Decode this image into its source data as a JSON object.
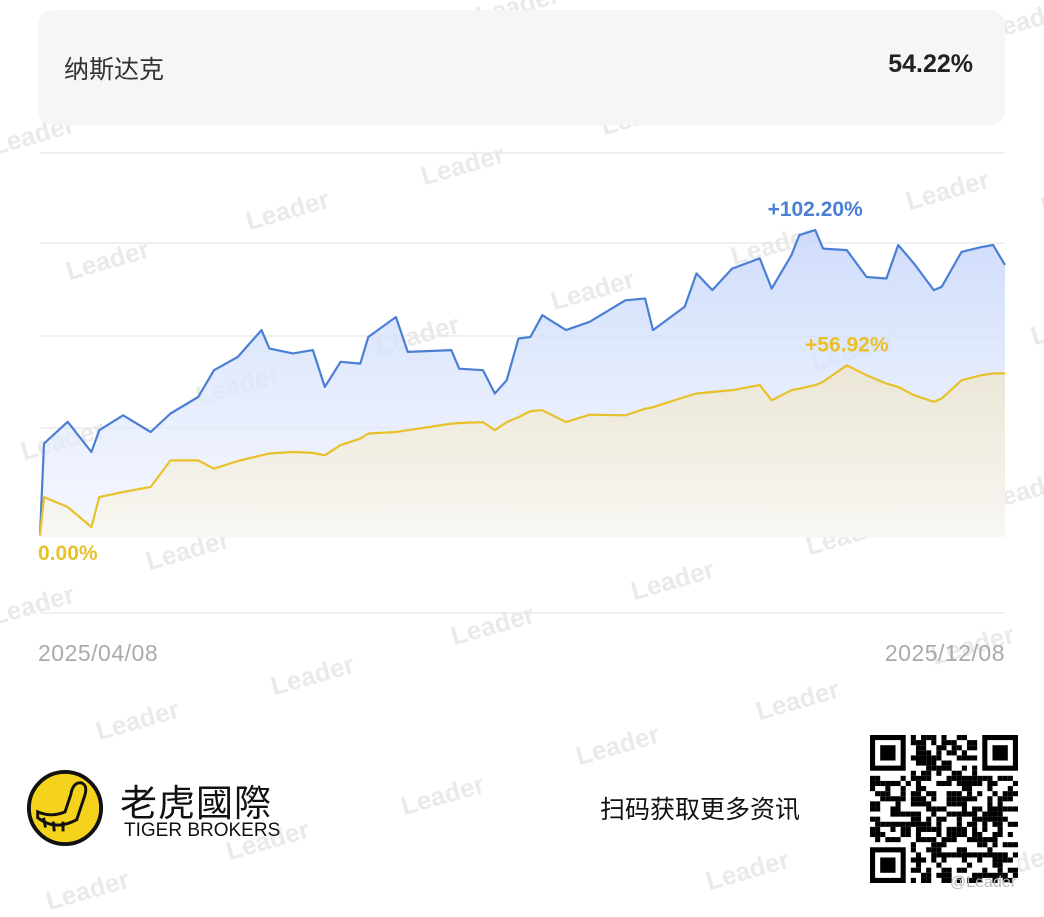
{
  "header": {
    "title": "纳斯达克",
    "value": "54.22%"
  },
  "chart_data": {
    "type": "area",
    "x": [
      "2025-04-08",
      "2025-04-09",
      "2025-04-15",
      "2025-04-21",
      "2025-04-23",
      "2025-04-29",
      "2025-05-06",
      "2025-05-11",
      "2025-05-18",
      "2025-05-22",
      "2025-05-28",
      "2025-06-03",
      "2025-06-05",
      "2025-06-11",
      "2025-06-16",
      "2025-06-19",
      "2025-06-23",
      "2025-06-28",
      "2025-06-30",
      "2025-07-07",
      "2025-07-10",
      "2025-07-21",
      "2025-07-23",
      "2025-07-29",
      "2025-08-01",
      "2025-08-04",
      "2025-08-07",
      "2025-08-10",
      "2025-08-13",
      "2025-08-19",
      "2025-08-25",
      "2025-09-03",
      "2025-09-08",
      "2025-09-10",
      "2025-09-18",
      "2025-09-21",
      "2025-09-25",
      "2025-09-30",
      "2025-10-07",
      "2025-10-10",
      "2025-10-15",
      "2025-10-17",
      "2025-10-21",
      "2025-10-23",
      "2025-10-29",
      "2025-11-03",
      "2025-11-08",
      "2025-11-11",
      "2025-11-15",
      "2025-11-20",
      "2025-11-22",
      "2025-11-27",
      "2025-12-02",
      "2025-12-05",
      "2025-12-08"
    ],
    "series": [
      {
        "color": "#4a7fd4",
        "values": [
          0,
          30.7,
          38.0,
          27.9,
          35.2,
          40.2,
          34.6,
          40.8,
          46.3,
          55.3,
          59.7,
          68.7,
          62.5,
          60.9,
          62.0,
          49.7,
          58.1,
          57.5,
          66.4,
          73.1,
          61.4,
          62.0,
          55.8,
          55.3,
          47.5,
          51.9,
          65.9,
          66.4,
          73.7,
          68.7,
          71.5,
          78.7,
          79.3,
          68.7,
          76.5,
          87.7,
          82.1,
          89.3,
          92.7,
          82.6,
          93.8,
          100.5,
          102.2,
          96.0,
          95.5,
          86.5,
          86.0,
          97.2,
          91.0,
          82.1,
          83.2,
          94.9,
          96.5,
          97.2,
          90.5
        ],
        "peak_label": "+102.20%"
      },
      {
        "color": "#e8c12a",
        "values": [
          0,
          12.8,
          9.5,
          2.8,
          12.8,
          14.5,
          16.2,
          25.1,
          25.1,
          22.3,
          24.9,
          26.8,
          27.4,
          27.9,
          27.6,
          26.8,
          30.2,
          32.4,
          34.1,
          34.6,
          35.2,
          37.4,
          37.6,
          37.9,
          35.2,
          37.9,
          39.6,
          41.6,
          41.9,
          37.9,
          40.4,
          40.2,
          42.4,
          42.9,
          46.3,
          47.5,
          48.0,
          48.6,
          50.3,
          45.2,
          48.6,
          49.1,
          50.3,
          51.4,
          56.92,
          53.6,
          50.8,
          49.7,
          46.9,
          44.7,
          45.8,
          51.9,
          53.6,
          54.2,
          54.22
        ],
        "peak_label": "+56.92%",
        "start_label": "0.00%"
      }
    ],
    "ylim": [
      -26,
      128
    ],
    "grid": true,
    "x_tick_labels": [
      "2025/04/08",
      "2025/12/08"
    ]
  },
  "footer": {
    "brand_cn": "老虎國際",
    "brand_en": "TIGER BROKERS",
    "scan_text": "扫码获取更多资讯",
    "handle": "@Leader",
    "logo_color": "#f5d21c"
  },
  "watermark": "Leader"
}
